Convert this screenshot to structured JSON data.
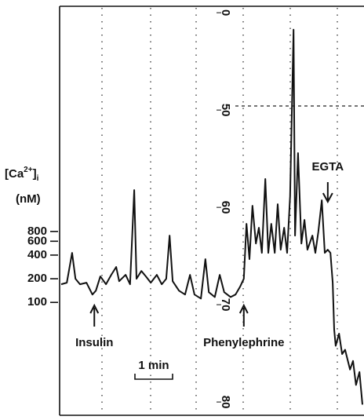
{
  "chart_data": {
    "type": "line",
    "y_label": {
      "prefix": "[Ca",
      "sup": "2+",
      "close": "]",
      "sub": "i",
      "unit": "(nM)"
    },
    "log_y": true,
    "ylim": [
      4.3,
      560000
    ],
    "yticks": [
      100,
      200,
      400,
      600,
      800
    ],
    "y2lim": [
      80.8,
      39.5
    ],
    "y2ticks": [
      {
        "value": 40,
        "label": "0"
      },
      50,
      60,
      70,
      80
    ],
    "xlim": [
      0,
      8
    ],
    "x": [
      0,
      0.15,
      0.29,
      0.38,
      0.5,
      0.67,
      0.83,
      0.92,
      1.04,
      1.19,
      1.33,
      1.46,
      1.54,
      1.71,
      1.83,
      1.94,
      2.0,
      2.13,
      2.25,
      2.38,
      2.54,
      2.67,
      2.79,
      2.88,
      2.96,
      3.13,
      3.29,
      3.42,
      3.54,
      3.71,
      3.83,
      3.92,
      4.08,
      4.21,
      4.33,
      4.5,
      4.63,
      4.75,
      4.85,
      4.92,
      5.0,
      5.08,
      5.17,
      5.25,
      5.33,
      5.42,
      5.5,
      5.58,
      5.67,
      5.75,
      5.83,
      5.92,
      6.0,
      6.08,
      6.17,
      6.21,
      6.29,
      6.38,
      6.46,
      6.54,
      6.67,
      6.75,
      6.83,
      6.92,
      7.0,
      7.08,
      7.15,
      7.21,
      7.25,
      7.29,
      7.38,
      7.46,
      7.54,
      7.67,
      7.75,
      7.83,
      7.92,
      8.0
    ],
    "series": [
      {
        "color": "#111111",
        "values": [
          170,
          178,
          427,
          200,
          170,
          178,
          126,
          141,
          214,
          170,
          224,
          282,
          186,
          224,
          170,
          2692,
          200,
          251,
          214,
          178,
          224,
          170,
          200,
          708,
          186,
          141,
          126,
          224,
          126,
          112,
          355,
          135,
          117,
          224,
          135,
          117,
          126,
          158,
          200,
          1000,
          355,
          1698,
          562,
          891,
          427,
          3715,
          427,
          1000,
          427,
          1778,
          468,
          891,
          427,
          2239,
          295120,
          708,
          7943,
          562,
          1122,
          468,
          708,
          427,
          794,
          1995,
          427,
          468,
          427,
          178,
          45,
          28,
          40,
          22,
          25,
          14,
          18,
          8.9,
          13,
          5
        ]
      }
    ],
    "annotations": [
      {
        "text": "Insulin",
        "x": 0.88
      },
      {
        "text": "Phenylephrine",
        "x": 4.85
      },
      {
        "text": "EGTA",
        "x": 7.08
      }
    ],
    "scale_bar": {
      "label": "1 min",
      "length": 1
    }
  }
}
